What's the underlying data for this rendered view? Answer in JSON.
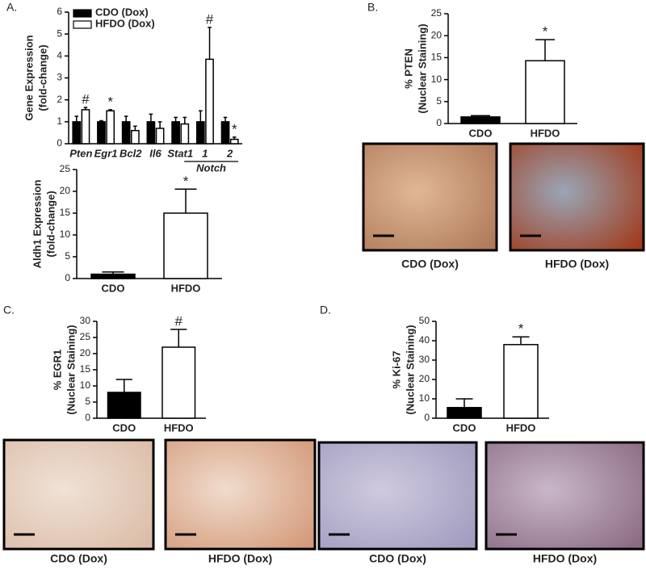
{
  "chart_data": [
    {
      "panel": "A.",
      "type": "bar",
      "ylabel": [
        "Gene Expression",
        "(fold-change)"
      ],
      "categories": [
        "Pten",
        "Egr1",
        "Bcl2",
        "Il6",
        "Stat1",
        "1",
        "2"
      ],
      "category_group": "Notch",
      "series": [
        {
          "name": "CDO (Dox)",
          "color": "#000000",
          "values": [
            1,
            1,
            1,
            1,
            1,
            1,
            1
          ],
          "errors": [
            0.25,
            0.05,
            0.25,
            0.35,
            0.2,
            0.5,
            0.2
          ]
        },
        {
          "name": "HFDO (Dox)",
          "color": "#ffffff",
          "values": [
            1.55,
            1.5,
            0.6,
            0.7,
            0.9,
            3.85,
            0.2
          ],
          "errors": [
            0.1,
            0.05,
            0.2,
            0.3,
            0.3,
            1.45,
            0.1
          ],
          "markers": [
            "#",
            "*",
            null,
            null,
            null,
            "#",
            "*"
          ]
        }
      ],
      "ylim": [
        0,
        6
      ],
      "yticks": [
        0,
        1,
        2,
        3,
        4,
        5,
        6
      ]
    },
    {
      "type": "bar",
      "ylabel": [
        "Aldh1 Expression",
        "(fold-change)"
      ],
      "categories": [
        "CDO",
        "HFDO"
      ],
      "values": [
        1,
        15
      ],
      "errors": [
        0.5,
        5.5
      ],
      "colors": [
        "#000000",
        "#ffffff"
      ],
      "markers": [
        null,
        "*"
      ],
      "ylim": [
        0,
        25
      ],
      "yticks": [
        0,
        5,
        10,
        15,
        20,
        25
      ]
    },
    {
      "panel": "B.",
      "type": "bar",
      "ylabel": [
        "% PTEN",
        "(Nuclear Staining)"
      ],
      "categories": [
        "CDO",
        "HFDO"
      ],
      "values": [
        1.5,
        14.3
      ],
      "errors": [
        0.3,
        4.8
      ],
      "colors": [
        "#000000",
        "#ffffff"
      ],
      "markers": [
        null,
        "*"
      ],
      "ylim": [
        0,
        25
      ],
      "yticks": [
        0,
        5,
        10,
        15,
        20,
        25
      ],
      "image_captions": [
        "CDO (Dox)",
        "HFDO (Dox)"
      ]
    },
    {
      "panel": "C.",
      "type": "bar",
      "ylabel": [
        "% EGR1",
        "(Nuclear Staining)"
      ],
      "categories": [
        "CDO",
        "HFDO"
      ],
      "values": [
        8,
        22
      ],
      "errors": [
        4,
        5.5
      ],
      "colors": [
        "#000000",
        "#ffffff"
      ],
      "markers": [
        null,
        "#"
      ],
      "ylim": [
        0,
        30
      ],
      "yticks": [
        0,
        5,
        10,
        15,
        20,
        25,
        30
      ],
      "image_captions": [
        "CDO (Dox)",
        "HFDO (Dox)"
      ]
    },
    {
      "panel": "D.",
      "type": "bar",
      "ylabel": [
        "% Ki-67",
        "(Nuclear Staining)"
      ],
      "categories": [
        "CDO",
        "HFDO"
      ],
      "values": [
        5.5,
        38
      ],
      "errors": [
        4.5,
        4
      ],
      "colors": [
        "#000000",
        "#ffffff"
      ],
      "markers": [
        null,
        "*"
      ],
      "ylim": [
        0,
        50
      ],
      "yticks": [
        0,
        10,
        20,
        30,
        40,
        50
      ],
      "image_captions": [
        "CDO (Dox)",
        "HFDO (Dox)"
      ]
    }
  ]
}
